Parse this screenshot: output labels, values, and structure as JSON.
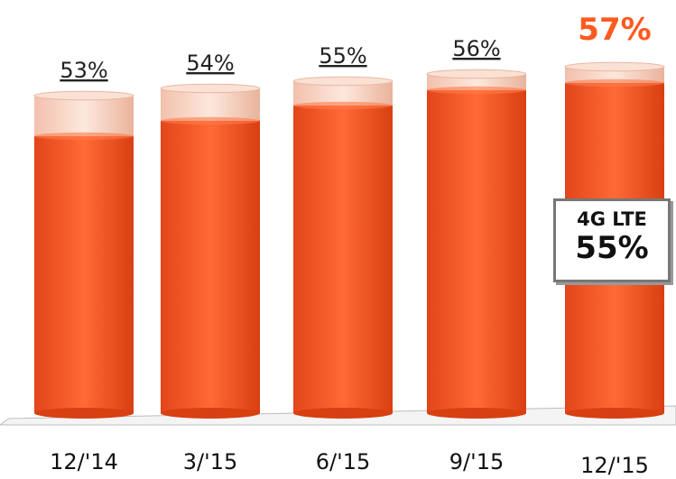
{
  "chart_data": {
    "type": "bar",
    "categories": [
      "12/'14",
      "3/'15",
      "6/'15",
      "9/'15",
      "12/'15"
    ],
    "series": [
      {
        "values": [
          53,
          54,
          55,
          56,
          57
        ]
      }
    ],
    "lte_values": [
      48,
      50,
      52,
      54,
      55
    ],
    "value_labels": [
      "53%",
      "54%",
      "55%",
      "56%",
      "57%"
    ],
    "ylim": [
      0,
      60
    ],
    "colors": {
      "bar": "#ff5a1f",
      "cap": "#f3c9b8",
      "highlight": "#ff5a1f"
    }
  },
  "callout": {
    "title": "4G LTE",
    "value": "55%"
  }
}
